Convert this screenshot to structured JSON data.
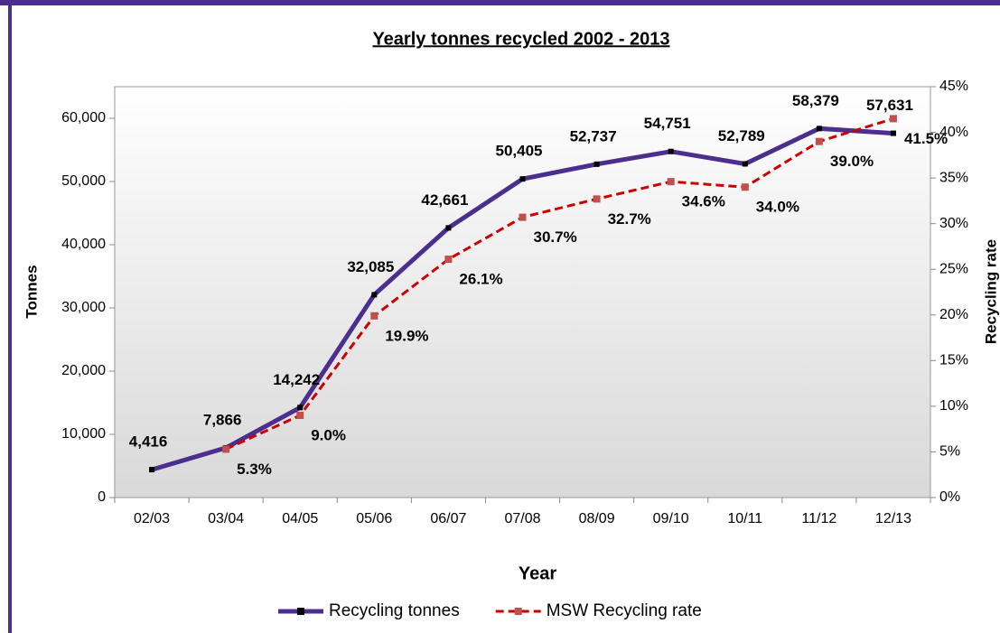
{
  "chart_data": {
    "type": "line",
    "title": "Yearly tonnes recycled 2002 - 2013",
    "x_label": "Year",
    "y_label": "Tonnes",
    "y2_label": "Recycling rate",
    "categories": [
      "02/03",
      "03/04",
      "04/05",
      "05/06",
      "06/07",
      "07/08",
      "08/09",
      "09/10",
      "10/11",
      "11/12",
      "12/13"
    ],
    "series": [
      {
        "name": "Recycling tonnes",
        "color": "#4b2e8e",
        "marker_color": "#000000",
        "dashed": false,
        "values": [
          4416,
          7866,
          14242,
          32085,
          42661,
          50405,
          52737,
          54751,
          52789,
          58379,
          57631
        ],
        "value_labels": [
          "4,416",
          "7,866",
          "14,242",
          "32,085",
          "42,661",
          "50,405",
          "52,737",
          "54,751",
          "52,789",
          "58,379",
          "57,631"
        ]
      },
      {
        "name": "MSW Recycling rate",
        "color": "#cc0000",
        "marker_color": "#c0504d",
        "dashed": true,
        "axis": "y2",
        "values": [
          null,
          5.3,
          9.0,
          19.9,
          26.1,
          30.7,
          32.7,
          34.6,
          34.0,
          39.0,
          41.5
        ],
        "value_labels": [
          null,
          "5.3%",
          "9.0%",
          "19.9%",
          "26.1%",
          "30.7%",
          "32.7%",
          "34.6%",
          "34.0%",
          "39.0%",
          "41.5%"
        ]
      }
    ],
    "ylim": [
      0,
      65000
    ],
    "yticks": [
      0,
      {
        "value": 10000,
        "label": "10,000"
      },
      {
        "value": 20000,
        "label": "20,000"
      },
      {
        "value": 30000,
        "label": "30,000"
      },
      {
        "value": 40000,
        "label": "40,000"
      },
      {
        "value": 50000,
        "label": "50,000"
      },
      {
        "value": 60000,
        "label": "60,000"
      }
    ],
    "y2lim": [
      0,
      45
    ],
    "y2ticks": [
      {
        "value": 0,
        "label": "0%"
      },
      {
        "value": 5,
        "label": "5%"
      },
      {
        "value": 10,
        "label": "10%"
      },
      {
        "value": 15,
        "label": "15%"
      },
      {
        "value": 20,
        "label": "20%"
      },
      {
        "value": 25,
        "label": "25%"
      },
      {
        "value": 30,
        "label": "30%"
      },
      {
        "value": 35,
        "label": "35%"
      },
      {
        "value": 40,
        "label": "40%"
      },
      {
        "value": 45,
        "label": "45%"
      }
    ],
    "legend": "bottom"
  }
}
